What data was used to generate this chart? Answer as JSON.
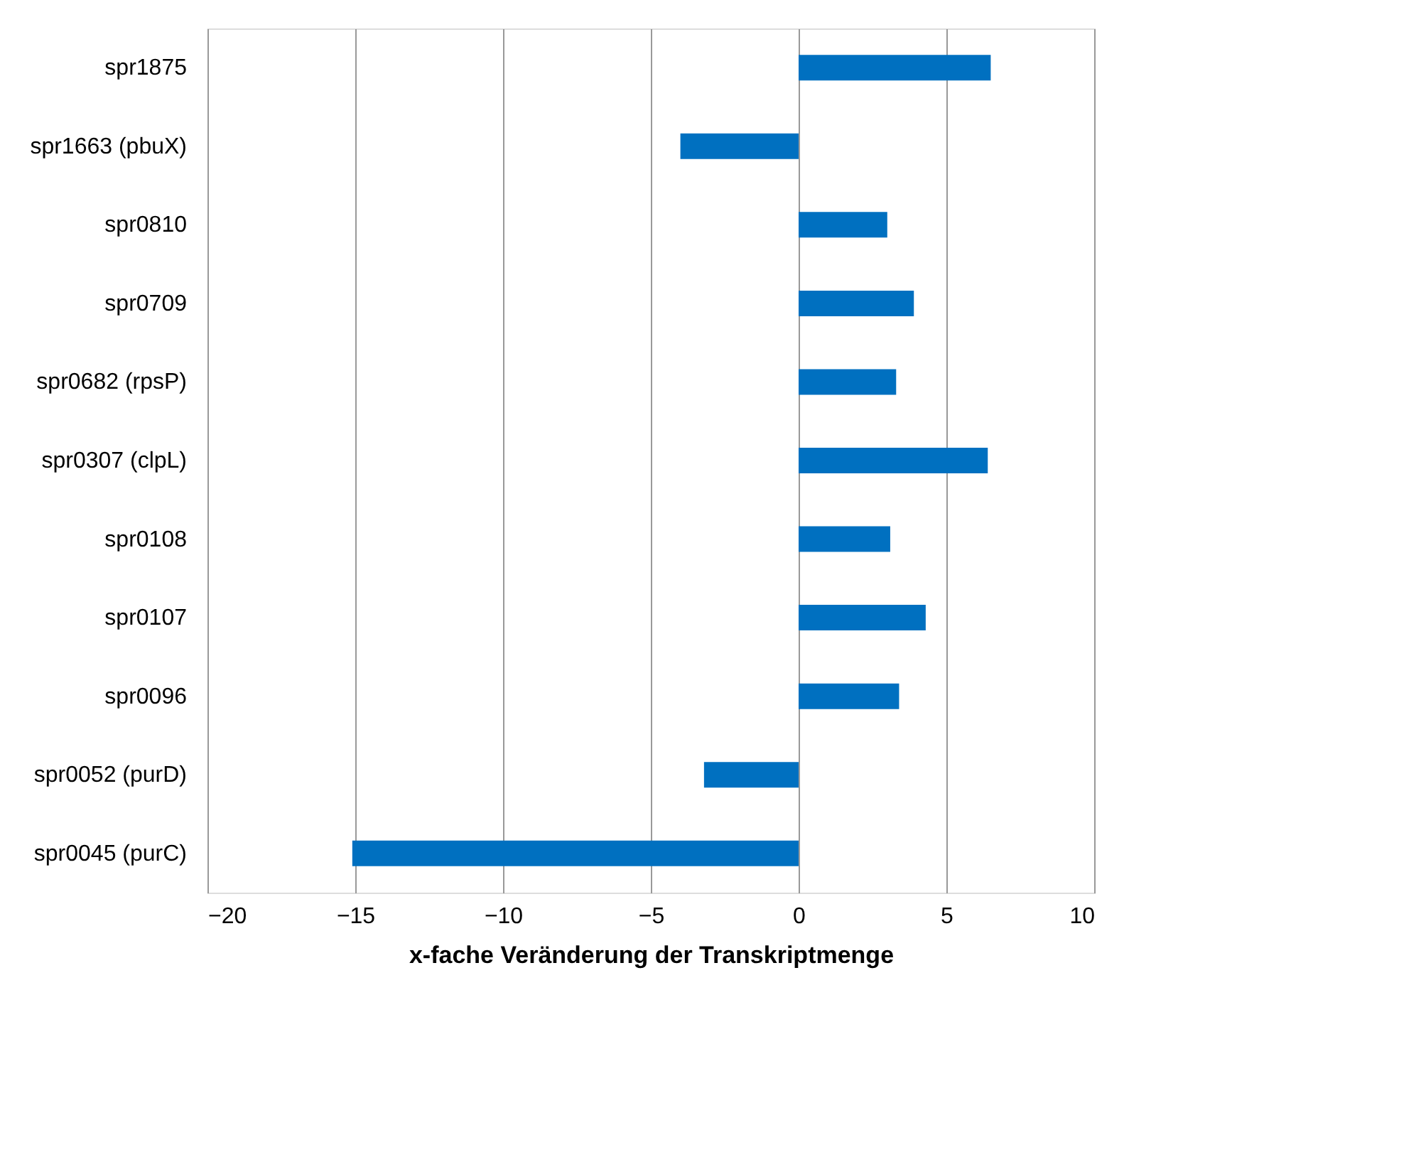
{
  "chart_data": {
    "type": "bar",
    "orientation": "horizontal",
    "categories": [
      "spr1875",
      "spr1663 (pbuX)",
      "spr0810",
      "spr0709",
      "spr0682 (rpsP)",
      "spr0307 (clpL)",
      "spr0108",
      "spr0107",
      "spr0096",
      "spr0052 (purD)",
      "spr0045 (purC)"
    ],
    "values": [
      6.5,
      -4.0,
      3.0,
      3.9,
      3.3,
      6.4,
      3.1,
      4.3,
      3.4,
      -3.2,
      -15.1
    ],
    "color": "#0070c0",
    "xlabel": "x-fache Veränderung der Transkriptmenge",
    "xlim": [
      -20,
      10
    ],
    "xticks": [
      -20,
      -15,
      -10,
      -5,
      0,
      5,
      10
    ],
    "grid": "x"
  }
}
